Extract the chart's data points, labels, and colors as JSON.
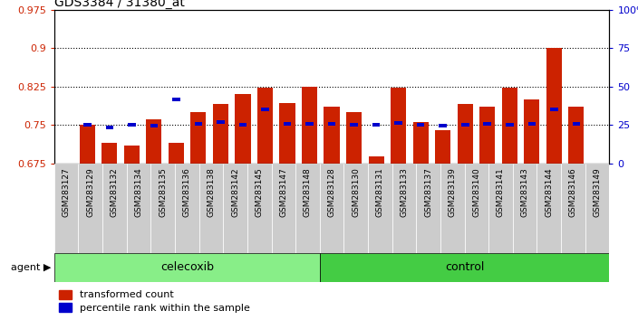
{
  "title": "GDS3384 / 31380_at",
  "samples": [
    "GSM283127",
    "GSM283129",
    "GSM283132",
    "GSM283134",
    "GSM283135",
    "GSM283136",
    "GSM283138",
    "GSM283142",
    "GSM283145",
    "GSM283147",
    "GSM283148",
    "GSM283128",
    "GSM283130",
    "GSM283131",
    "GSM283133",
    "GSM283137",
    "GSM283139",
    "GSM283140",
    "GSM283141",
    "GSM283143",
    "GSM283144",
    "GSM283146",
    "GSM283149"
  ],
  "red_values": [
    0.75,
    0.715,
    0.71,
    0.76,
    0.715,
    0.775,
    0.79,
    0.81,
    0.822,
    0.792,
    0.825,
    0.785,
    0.775,
    0.688,
    0.822,
    0.755,
    0.74,
    0.79,
    0.785,
    0.822,
    0.8,
    0.9,
    0.785
  ],
  "blue_values": [
    0.75,
    0.745,
    0.75,
    0.748,
    0.8,
    0.752,
    0.755,
    0.75,
    0.78,
    0.752,
    0.752,
    0.752,
    0.75,
    0.75,
    0.753,
    0.75,
    0.748,
    0.75,
    0.752,
    0.75,
    0.752,
    0.78,
    0.752
  ],
  "celecoxib_count": 11,
  "control_count": 12,
  "ylim_left": [
    0.675,
    0.975
  ],
  "ylim_right": [
    0,
    100
  ],
  "yticks_left": [
    0.675,
    0.75,
    0.825,
    0.9,
    0.975
  ],
  "yticks_right": [
    0,
    25,
    50,
    75,
    100
  ],
  "ytick_labels_left": [
    "0.675",
    "0.75",
    "0.825",
    "0.9",
    "0.975"
  ],
  "ytick_labels_right": [
    "0",
    "25",
    "50",
    "75",
    "100%"
  ],
  "hlines": [
    0.75,
    0.825,
    0.9
  ],
  "bar_color": "#cc2200",
  "dot_color": "#0000cc",
  "celecoxib_color": "#88ee88",
  "control_color": "#44cc44",
  "agent_label": "agent",
  "celecoxib_label": "celecoxib",
  "control_label": "control",
  "legend_red": "transformed count",
  "legend_blue": "percentile rank within the sample",
  "tick_box_color": "#cccccc"
}
